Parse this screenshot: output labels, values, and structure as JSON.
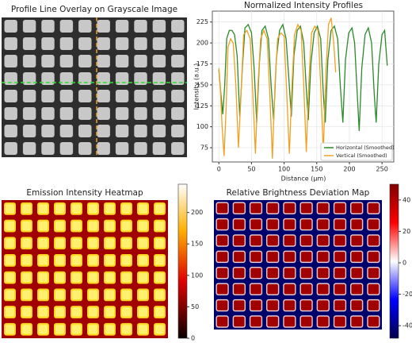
{
  "chart_data": [
    {
      "type": "image",
      "title": "Profile Line Overlay on Grayscale Image"
    },
    {
      "type": "line",
      "title": "Normalized Intensity Profiles",
      "xlabel": "Distance (μm)",
      "ylabel": "Intensity (a.u.)",
      "xlim": [
        -10,
        268
      ],
      "ylim": [
        58,
        238
      ],
      "xticks": [
        0,
        50,
        100,
        150,
        200,
        250
      ],
      "yticks": [
        75,
        100,
        125,
        150,
        175,
        200,
        225
      ],
      "grid": true,
      "legend": "lower right",
      "series": [
        {
          "name": "Horizontal (Smoothed)",
          "color": "#2a8a2a",
          "x": [
            0,
            3,
            6,
            9,
            12,
            16,
            20,
            24,
            28,
            32,
            36,
            40,
            45,
            50,
            54,
            58,
            62,
            66,
            71,
            76,
            80,
            84,
            88,
            93,
            98,
            103,
            107,
            111,
            115,
            120,
            125,
            130,
            134,
            137,
            141,
            146,
            151,
            156,
            160,
            163,
            167,
            172,
            177,
            182,
            186,
            190,
            194,
            199,
            204,
            208,
            212,
            215,
            219,
            224,
            229,
            234,
            238,
            241,
            245,
            250,
            254,
            258
          ],
          "values": [
            168,
            140,
            115,
            150,
            205,
            215,
            215,
            210,
            185,
            112,
            170,
            218,
            222,
            212,
            170,
            105,
            175,
            215,
            220,
            205,
            150,
            108,
            180,
            215,
            222,
            205,
            160,
            112,
            185,
            215,
            220,
            200,
            145,
            108,
            175,
            212,
            220,
            205,
            140,
            105,
            180,
            215,
            220,
            205,
            150,
            105,
            180,
            212,
            218,
            200,
            140,
            95,
            170,
            210,
            218,
            200,
            140,
            105,
            175,
            210,
            215,
            173
          ]
        },
        {
          "name": "Vertical (Smoothed)",
          "color": "#f0a020",
          "x": [
            0,
            2,
            5,
            8,
            11,
            14,
            18,
            22,
            26,
            30,
            34,
            38,
            43,
            48,
            52,
            56,
            60,
            64,
            69,
            74,
            78,
            82,
            86,
            90,
            95,
            100,
            104,
            108,
            112,
            116,
            121,
            126,
            130,
            134,
            138,
            142,
            147,
            152,
            156,
            160,
            164,
            168,
            172,
            176,
            179
          ],
          "values": [
            170,
            150,
            100,
            65,
            120,
            195,
            205,
            200,
            150,
            75,
            140,
            210,
            215,
            205,
            140,
            68,
            150,
            205,
            215,
            205,
            140,
            62,
            150,
            205,
            212,
            208,
            140,
            68,
            150,
            210,
            222,
            215,
            150,
            70,
            155,
            212,
            220,
            215,
            150,
            70,
            165,
            222,
            230,
            200,
            165
          ]
        }
      ]
    },
    {
      "type": "image",
      "title": "Emission Intensity Heatmap",
      "clim": [
        0,
        245
      ],
      "cticks": [
        0,
        50,
        100,
        150,
        200
      ]
    },
    {
      "type": "image",
      "title": "Relative Brightness Deviation Map",
      "clim": [
        -48,
        50
      ],
      "cticks": [
        -40,
        -20,
        0,
        20,
        40
      ]
    }
  ]
}
